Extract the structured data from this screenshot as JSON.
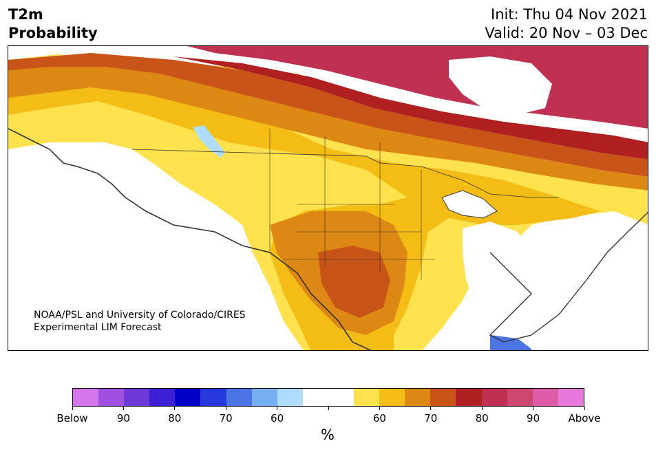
{
  "header": {
    "title_line1": "T2m",
    "title_line2": "Probability",
    "init": "Init: Thu 04 Nov 2021",
    "valid": "Valid: 20 Nov – 03 Dec"
  },
  "map": {
    "credit_line1": "NOAA/PSL and University of Colorado/CIRES",
    "credit_line2": "Experimental LIM Forecast"
  },
  "colorbar": {
    "colors": [
      "#d575ec",
      "#a050e0",
      "#6c38d8",
      "#3d1fd6",
      "#0000c8",
      "#2538dc",
      "#4b74e6",
      "#76b0f2",
      "#aedcfa",
      "#ffffff",
      "#ffffff",
      "#ffe24e",
      "#f3bd16",
      "#dd8814",
      "#c85418",
      "#b02020",
      "#c03050",
      "#cc4870",
      "#dc5ca8",
      "#e878dc"
    ],
    "labels": [
      "Below",
      "90",
      "80",
      "70",
      "60",
      "60",
      "70",
      "80",
      "90",
      "Above"
    ],
    "unit": "%"
  }
}
